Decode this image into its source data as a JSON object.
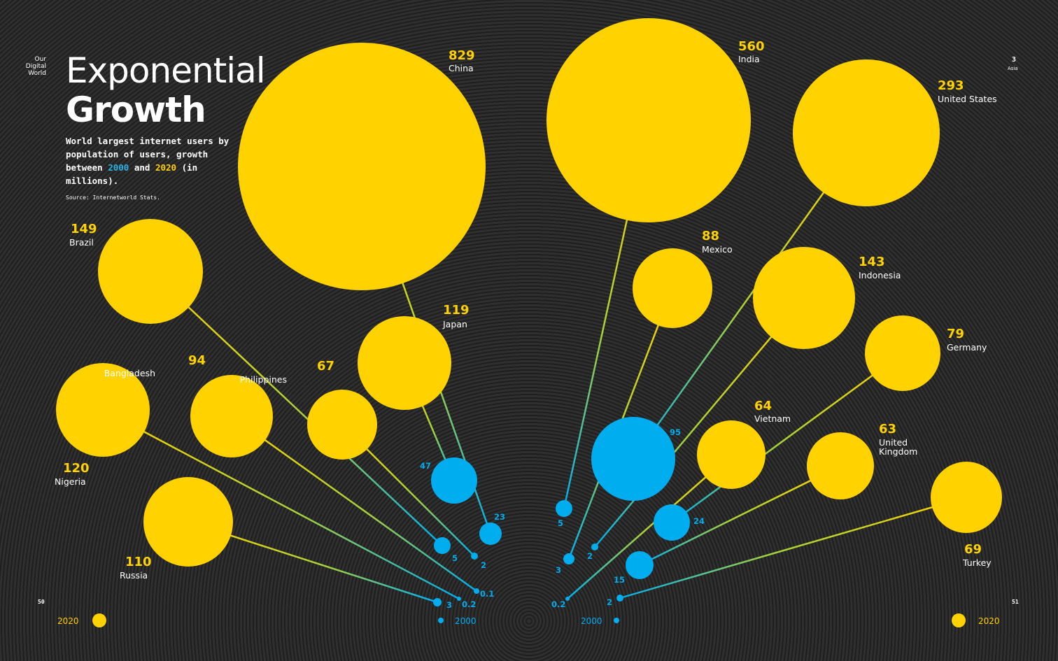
{
  "brand": {
    "line1": "Our",
    "line2": "Digital",
    "line3": "World"
  },
  "title": {
    "light": "Exponential",
    "bold": "Growth"
  },
  "subtitle": {
    "part1": "World largest internet users by population of users, growth between ",
    "year_a": "2000",
    "part2": " and ",
    "year_b": "2020",
    "part3": " (in millions)."
  },
  "source": "Source: Internetworld Stats.",
  "pages": {
    "left": "50",
    "right": "51",
    "top_right": "3",
    "section": "Asia"
  },
  "timeline": {
    "left_2020": "2020",
    "left_2000": "2000",
    "right_2000": "2000",
    "right_2020": "2020"
  },
  "colors": {
    "y2020": "#ffd200",
    "y2000": "#00aeef",
    "background": "#262626"
  },
  "chart_data": {
    "type": "bubble",
    "unit": "millions",
    "series_years": [
      "2000",
      "2020"
    ],
    "countries": [
      {
        "name": "China",
        "v2000": "23",
        "v2020": "829"
      },
      {
        "name": "India",
        "v2000": "5",
        "v2020": "560"
      },
      {
        "name": "United States",
        "v2000": "95",
        "v2020": "293"
      },
      {
        "name": "Brazil",
        "v2000": "5",
        "v2020": "149"
      },
      {
        "name": "Indonesia",
        "v2000": "2",
        "v2020": "143"
      },
      {
        "name": "Nigeria",
        "v2000": "0.2",
        "v2020": "120"
      },
      {
        "name": "Japan",
        "v2000": "47",
        "v2020": "119"
      },
      {
        "name": "Russia",
        "v2000": "3",
        "v2020": "110"
      },
      {
        "name": "Bangladesh",
        "v2000": "0.1",
        "v2020": "94"
      },
      {
        "name": "Mexico",
        "v2000": "3",
        "v2020": "88"
      },
      {
        "name": "Germany",
        "v2000": "24",
        "v2020": "79"
      },
      {
        "name": "Philippines",
        "v2000": "2",
        "v2020": "67"
      },
      {
        "name": "Vietnam",
        "v2000": "0.2",
        "v2020": "64"
      },
      {
        "name": "United Kingdom",
        "v2000": "15",
        "v2020": "63"
      },
      {
        "name": "Turkey",
        "v2000": "2",
        "v2020": "69"
      }
    ]
  }
}
